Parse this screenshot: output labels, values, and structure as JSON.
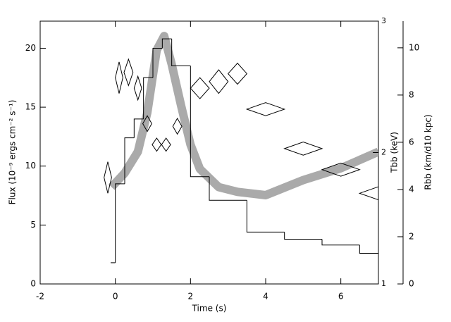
{
  "chart_data": {
    "type": "combo",
    "xlabel": "Time (s)",
    "ylabel": "Flux (10⁻⁹ ergs cm⁻² s⁻¹)",
    "y2label": "Tbb (keV)",
    "y3label": "Rbb (km/d10 kpc)",
    "xlim": [
      -2,
      7
    ],
    "xticks": [
      -2,
      0,
      2,
      4,
      6
    ],
    "ylim": [
      0,
      22.3
    ],
    "yticks": [
      0,
      5,
      10,
      15,
      20
    ],
    "y2lim": [
      1,
      3
    ],
    "y2ticks": [
      1,
      2,
      3
    ],
    "y3lim": [
      0,
      11.13
    ],
    "y3ticks": [
      0,
      2,
      4,
      6,
      8,
      10
    ],
    "series": [
      {
        "type": "band",
        "axis": "y3",
        "color": "#aaaaaa",
        "x": [
          -0.1,
          0.25,
          0.6,
          0.85,
          1.1,
          1.3,
          1.5,
          1.75,
          2.0,
          2.25,
          2.75,
          3.25,
          4.0,
          5.0,
          6.0,
          7.0
        ],
        "values": [
          4.1,
          4.7,
          5.6,
          7.25,
          9.9,
          10.5,
          9.3,
          7.55,
          5.9,
          4.87,
          4.1,
          3.9,
          3.76,
          4.4,
          4.9,
          5.6
        ]
      },
      {
        "type": "step",
        "color": "#000000",
        "bins": [
          -0.125,
          0,
          0.25,
          0.5,
          0.75,
          1.0,
          1.25,
          1.5,
          2.0,
          2.5,
          3.5,
          4.5,
          5.5,
          6.5,
          7.0
        ],
        "values": [
          1.8,
          8.5,
          12.4,
          14.0,
          17.5,
          20.0,
          20.8,
          18.5,
          9.1,
          7.1,
          4.4,
          3.8,
          3.3,
          2.6
        ]
      },
      {
        "type": "diamond",
        "axis": "y2",
        "color": "#000000",
        "x": [
          -0.2,
          0.1,
          0.35,
          0.6,
          0.85,
          1.1,
          1.35,
          1.65,
          2.25,
          2.75,
          3.25,
          4.0,
          5.0,
          6.0,
          7.0
        ],
        "values": [
          1.81,
          2.57,
          2.61,
          2.49,
          2.22,
          2.06,
          2.06,
          2.2,
          2.49,
          2.54,
          2.6,
          2.33,
          2.03,
          1.87,
          1.69
        ],
        "xerr": [
          0.1,
          0.1,
          0.12,
          0.1,
          0.12,
          0.12,
          0.12,
          0.12,
          0.25,
          0.25,
          0.25,
          0.5,
          0.5,
          0.5,
          0.5
        ],
        "yerr": [
          0.12,
          0.12,
          0.1,
          0.09,
          0.06,
          0.05,
          0.05,
          0.06,
          0.08,
          0.09,
          0.08,
          0.05,
          0.05,
          0.05,
          0.05
        ]
      }
    ]
  }
}
